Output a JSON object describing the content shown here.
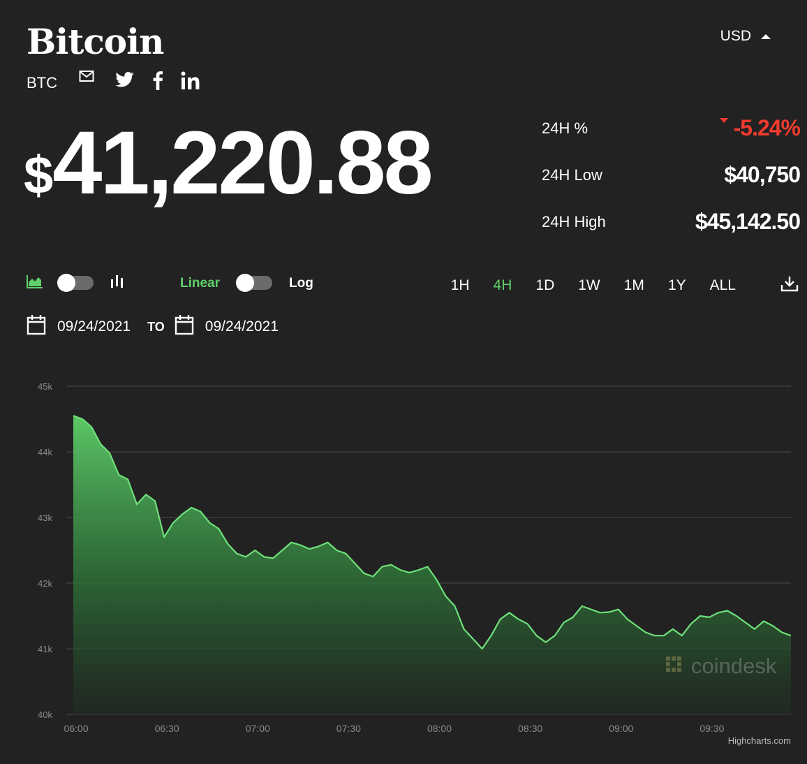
{
  "header": {
    "title": "Bitcoin",
    "symbol": "BTC",
    "currency": "USD",
    "share_icons": [
      "mail-icon",
      "twitter-icon",
      "facebook-icon",
      "linkedin-icon"
    ]
  },
  "price": {
    "currency_symbol": "$",
    "value": "41,220.88"
  },
  "stats": [
    {
      "label": "24H %",
      "value": "-5.24%",
      "trend": "down"
    },
    {
      "label": "24H Low",
      "value": "$40,750"
    },
    {
      "label": "24H High",
      "value": "$45,142.50"
    }
  ],
  "toolbar": {
    "chart_type_toggle": {
      "left_icon": "area-chart-icon",
      "right_icon": "candlestick-chart-icon"
    },
    "scale_left": "Linear",
    "scale_right": "Log",
    "ranges": [
      "1H",
      "4H",
      "1D",
      "1W",
      "1M",
      "1Y",
      "ALL"
    ],
    "active_range": "4H",
    "download_icon": "download-icon"
  },
  "date_range": {
    "from": "09/24/2021",
    "to_label": "TO",
    "to": "09/24/2021"
  },
  "colors": {
    "background": "#222222",
    "accent_green": "#5fd06a",
    "negative_red": "#f23a2f",
    "grid": "#4a4a4a"
  },
  "chart_data": {
    "type": "area",
    "title": "",
    "xlabel": "",
    "ylabel": "",
    "x_ticks": [
      "06:00",
      "06:30",
      "07:00",
      "07:30",
      "08:00",
      "08:30",
      "09:00",
      "09:30"
    ],
    "y_ticks": [
      "40k",
      "41k",
      "42k",
      "43k",
      "44k",
      "45k"
    ],
    "ylim": [
      40000,
      45000
    ],
    "xlim": [
      "06:00",
      "09:57"
    ],
    "grid": true,
    "legend": "none",
    "watermark": "coindesk",
    "credit": "Highcharts.com",
    "series": [
      {
        "x": [
          "06:00",
          "06:03",
          "06:06",
          "06:09",
          "06:12",
          "06:15",
          "06:18",
          "06:21",
          "06:24",
          "06:27",
          "06:30",
          "06:33",
          "06:36",
          "06:39",
          "06:42",
          "06:45",
          "06:48",
          "06:51",
          "06:54",
          "06:57",
          "07:00",
          "07:03",
          "07:06",
          "07:09",
          "07:12",
          "07:15",
          "07:18",
          "07:21",
          "07:24",
          "07:27",
          "07:30",
          "07:33",
          "07:36",
          "07:39",
          "07:42",
          "07:45",
          "07:48",
          "07:51",
          "07:54",
          "07:57",
          "08:00",
          "08:03",
          "08:06",
          "08:09",
          "08:12",
          "08:15",
          "08:18",
          "08:21",
          "08:24",
          "08:27",
          "08:30",
          "08:33",
          "08:36",
          "08:39",
          "08:42",
          "08:45",
          "08:48",
          "08:51",
          "08:54",
          "08:57",
          "09:00",
          "09:03",
          "09:06",
          "09:09",
          "09:12",
          "09:15",
          "09:18",
          "09:21",
          "09:24",
          "09:27",
          "09:30",
          "09:33",
          "09:36",
          "09:39",
          "09:42",
          "09:45",
          "09:48",
          "09:51",
          "09:54",
          "09:57"
        ],
        "values": [
          44550,
          44500,
          44380,
          44120,
          43980,
          43650,
          43580,
          43200,
          43350,
          43250,
          42700,
          42920,
          43050,
          43150,
          43090,
          42920,
          42830,
          42600,
          42450,
          42400,
          42500,
          42400,
          42380,
          42500,
          42620,
          42580,
          42520,
          42560,
          42620,
          42500,
          42450,
          42300,
          42150,
          42100,
          42250,
          42280,
          42200,
          42160,
          42200,
          42250,
          42050,
          41800,
          41650,
          41300,
          41150,
          41000,
          41200,
          41450,
          41550,
          41450,
          41380,
          41200,
          41100,
          41200,
          41400,
          41480,
          41650,
          41600,
          41550,
          41560,
          41600,
          41450,
          41350,
          41250,
          41200,
          41200,
          41300,
          41200,
          41380,
          41500,
          41480,
          41550,
          41580,
          41500,
          41400,
          41300,
          41420,
          41350,
          41250,
          41200
        ]
      }
    ]
  }
}
